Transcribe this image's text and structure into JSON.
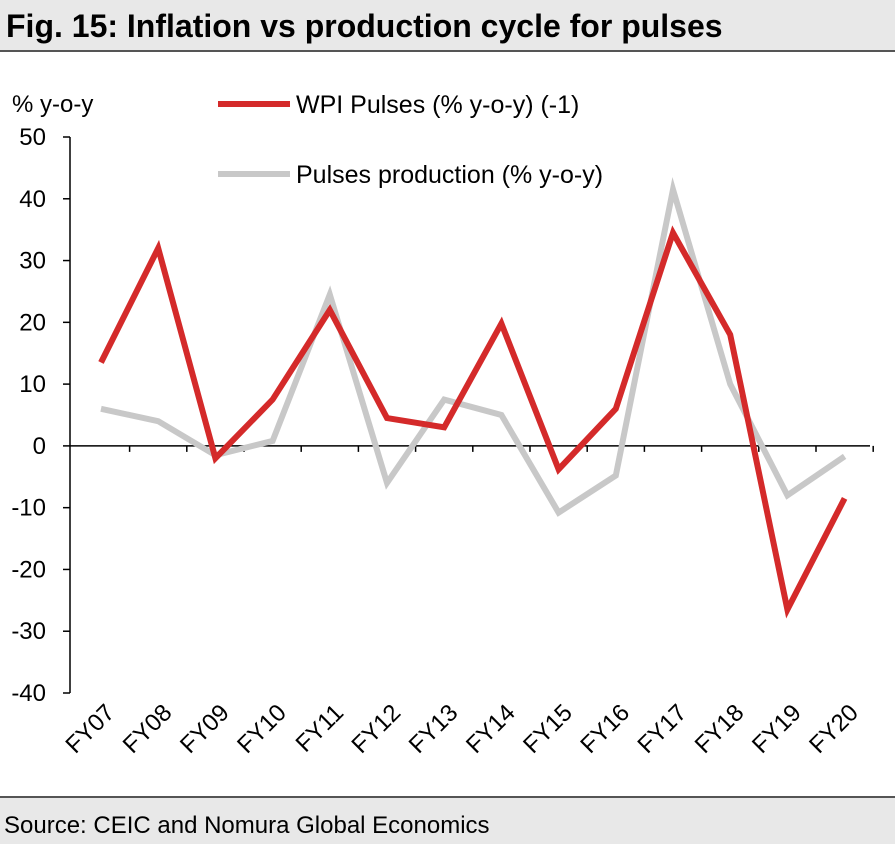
{
  "title": "Fig. 15: Inflation vs production cycle for pulses",
  "source": "Source: CEIC and Nomura Global Economics",
  "chart_data": {
    "type": "line",
    "categories": [
      "FY07",
      "FY08",
      "FY09",
      "FY10",
      "FY11",
      "FY12",
      "FY13",
      "FY14",
      "FY15",
      "FY16",
      "FY17",
      "FY18",
      "FY19",
      "FY20"
    ],
    "ylabel": "% y-o-y",
    "ylim": [
      -40,
      50
    ],
    "yticks": [
      50,
      40,
      30,
      20,
      10,
      0,
      -10,
      -20,
      -30,
      -40
    ],
    "legend_position": "top",
    "series": [
      {
        "name": "WPI Pulses (% y-o-y) (-1)",
        "color": "#d42a2a",
        "values": [
          13.5,
          32,
          -2,
          7.5,
          22,
          4.5,
          3,
          19.8,
          -3.8,
          6,
          34.5,
          18,
          -26.5,
          -8.5
        ]
      },
      {
        "name": "Pulses production (% y-o-y)",
        "color": "#c8c8c8",
        "values": [
          6,
          4,
          -1.5,
          0.8,
          24.5,
          -6,
          7.5,
          5,
          -10.8,
          -4.8,
          41.5,
          10,
          -8,
          -1.7
        ]
      }
    ]
  }
}
